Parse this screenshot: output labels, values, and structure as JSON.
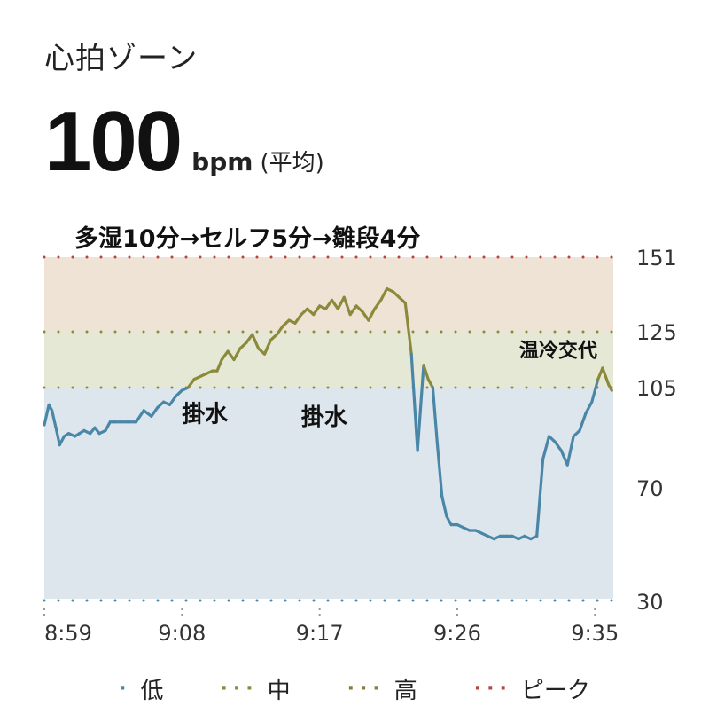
{
  "header": {
    "title": "心拍ゾーン",
    "value": "100",
    "unit": "bpm",
    "unit_note": "(平均)"
  },
  "colors": {
    "low": "#4a86a8",
    "mid": "#8a8a3a",
    "high": "#8a7a40",
    "peak": "#b3473f",
    "band_low": "#dce6ec",
    "band_mid": "#e6e8d6",
    "band_high": "#efe3d5"
  },
  "chart_data": {
    "type": "line",
    "title": "多湿10分→セルフ5分→雛段4分",
    "ylim": [
      30,
      151
    ],
    "zone_thresholds": {
      "low_upper": 105,
      "mid_upper": 125,
      "peak": 151
    },
    "yticks": [
      "151",
      "125",
      "105",
      "70",
      "30"
    ],
    "ytick_values": [
      151,
      125,
      105,
      70,
      30
    ],
    "xticks": [
      "8:59",
      "9:08",
      "9:17",
      "9:26",
      "9:35"
    ],
    "xtick_minutes": [
      0,
      9,
      18,
      27,
      36
    ],
    "x_range_minutes": [
      0,
      37.2
    ],
    "annotations": [
      {
        "text": "掛水",
        "x": 10.5,
        "y": 93
      },
      {
        "text": "掛水",
        "x": 18.3,
        "y": 92
      },
      {
        "text": "温冷交代",
        "x": 33.6,
        "y": 116
      }
    ],
    "series": [
      {
        "name": "心拍",
        "x": [
          0,
          0.3,
          0.5,
          0.8,
          1.0,
          1.3,
          1.6,
          2.0,
          2.3,
          2.6,
          3.0,
          3.3,
          3.6,
          4.0,
          4.3,
          4.6,
          5.0,
          5.5,
          6.0,
          6.5,
          7.0,
          7.4,
          7.8,
          8.2,
          8.6,
          9.0,
          9.4,
          9.8,
          10.2,
          10.6,
          11.0,
          11.3,
          11.6,
          12.0,
          12.4,
          12.8,
          13.2,
          13.6,
          14.0,
          14.4,
          14.8,
          15.2,
          15.6,
          16.0,
          16.4,
          16.8,
          17.2,
          17.6,
          18.0,
          18.4,
          18.8,
          19.2,
          19.6,
          20.0,
          20.4,
          20.8,
          21.2,
          21.6,
          22.0,
          22.4,
          22.8,
          23.2,
          23.6,
          24.0,
          24.4,
          24.8,
          25.1,
          25.4,
          25.7,
          26.0,
          26.3,
          26.6,
          27.0,
          27.4,
          27.8,
          28.2,
          28.6,
          29.0,
          29.4,
          29.8,
          30.2,
          30.6,
          31.0,
          31.4,
          31.8,
          32.2,
          32.6,
          33.0,
          33.4,
          33.8,
          34.2,
          34.6,
          35.0,
          35.4,
          35.8,
          36.2,
          36.5,
          36.7,
          36.9,
          37.1
        ],
        "values": [
          92,
          99,
          97,
          90,
          85,
          88,
          89,
          88,
          89,
          90,
          89,
          91,
          89,
          90,
          93,
          93,
          93,
          93,
          93,
          97,
          95,
          98,
          100,
          99,
          102,
          104,
          105,
          108,
          109,
          110,
          111,
          111,
          115,
          118,
          115,
          119,
          121,
          124,
          119,
          117,
          122,
          124,
          127,
          129,
          128,
          131,
          133,
          131,
          134,
          133,
          136,
          133,
          137,
          131,
          134,
          132,
          129,
          133,
          136,
          140,
          139,
          137,
          135,
          117,
          83,
          113,
          108,
          105,
          85,
          67,
          60,
          57,
          57,
          56,
          55,
          55,
          54,
          53,
          52,
          53,
          53,
          53,
          52,
          53,
          52,
          53,
          80,
          88,
          86,
          83,
          78,
          88,
          90,
          96,
          100,
          108,
          112,
          109,
          106,
          104
        ]
      }
    ]
  },
  "legend": [
    {
      "label": "低",
      "color": "#4a86a8"
    },
    {
      "label": "中",
      "color": "#8a8a3a"
    },
    {
      "label": "高",
      "color": "#8a7a40"
    },
    {
      "label": "ピーク",
      "color": "#b3473f"
    }
  ]
}
